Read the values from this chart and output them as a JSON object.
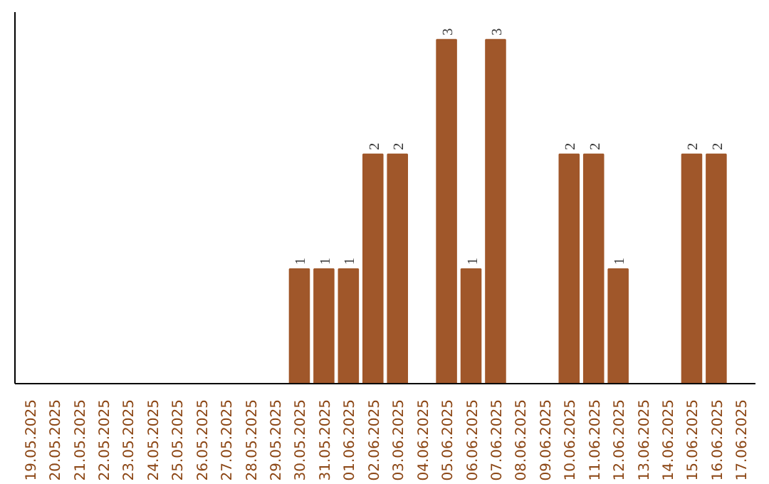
{
  "chart_data": {
    "type": "bar",
    "categories": [
      "19.05.2025",
      "20.05.2025",
      "21.05.2025",
      "22.05.2025",
      "23.05.2025",
      "24.05.2025",
      "25.05.2025",
      "26.05.2025",
      "27.05.2025",
      "28.05.2025",
      "29.05.2025",
      "30.05.2025",
      "31.05.2025",
      "01.06.2025",
      "02.06.2025",
      "03.06.2025",
      "04.06.2025",
      "05.06.2025",
      "06.06.2025",
      "07.06.2025",
      "08.06.2025",
      "09.06.2025",
      "10.06.2025",
      "11.06.2025",
      "12.06.2025",
      "13.06.2025",
      "14.06.2025",
      "15.06.2025",
      "16.06.2025",
      "17.06.2025"
    ],
    "values": [
      0,
      0,
      0,
      0,
      0,
      0,
      0,
      0,
      0,
      0,
      0,
      1,
      1,
      1,
      2,
      2,
      0,
      3,
      1,
      3,
      0,
      0,
      2,
      2,
      1,
      0,
      0,
      2,
      2,
      0
    ],
    "value_labels": [
      null,
      null,
      null,
      null,
      null,
      null,
      null,
      null,
      null,
      null,
      null,
      "1",
      "1",
      "1",
      "2",
      "2",
      null,
      "3",
      "1",
      "3",
      null,
      null,
      "2",
      "2",
      "1",
      null,
      null,
      "2",
      "2",
      null
    ],
    "color": "#a0572a",
    "grid": false
  }
}
